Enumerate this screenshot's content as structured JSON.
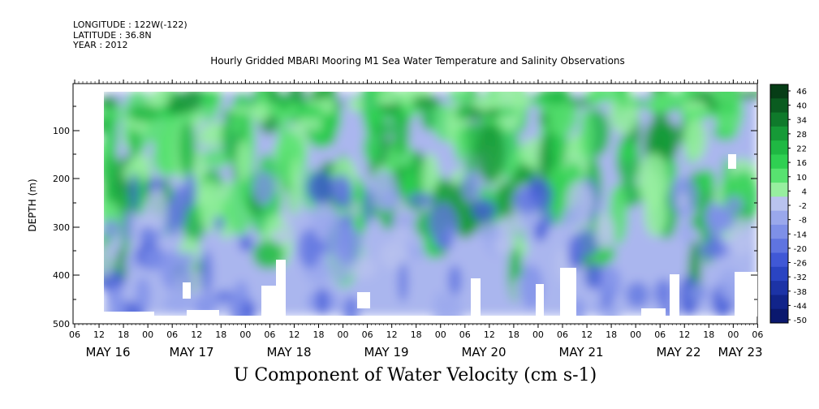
{
  "header": {
    "longitude": "LONGITUDE : 122W(-122)",
    "latitude": "LATITUDE : 36.8N",
    "year": "YEAR : 2012",
    "title": "Hourly Gridded MBARI Mooring M1 Sea Water Temperature and Salinity Observations"
  },
  "footer": {
    "variable_title": "U Component of Water Velocity (cm s-1)"
  },
  "chart_data": {
    "type": "heatmap",
    "title": "Hourly Gridded MBARI Mooring M1 Sea Water Temperature and Salinity Observations",
    "xlabel": "",
    "ylabel": "DEPTH (m)",
    "ylim": [
      500,
      10
    ],
    "y_reversed": true,
    "yticks": [
      100,
      200,
      300,
      400,
      500
    ],
    "x_hour_ticks": [
      "06",
      "12",
      "18",
      "00",
      "06",
      "12",
      "18",
      "00",
      "06",
      "12",
      "18",
      "00",
      "06",
      "12",
      "18",
      "00",
      "06",
      "12",
      "18",
      "00",
      "06",
      "12",
      "18",
      "00",
      "06",
      "12",
      "18",
      "00",
      "06"
    ],
    "x_day_labels": [
      "MAY 16",
      "MAY 17",
      "MAY 18",
      "MAY 19",
      "MAY 20",
      "MAY 21",
      "MAY 22",
      "MAY 23"
    ],
    "colorbar": {
      "labels": [
        "46",
        "40",
        "34",
        "28",
        "22",
        "16",
        "10",
        "4",
        "-2",
        "-8",
        "-14",
        "-20",
        "-26",
        "-32",
        "-38",
        "-44",
        "-50"
      ],
      "colors": [
        "#063d16",
        "#0a5c20",
        "#0f7a2b",
        "#169a37",
        "#1fb843",
        "#2fd052",
        "#58e270",
        "#97ef9f",
        "#b9c3ee",
        "#9aa8ec",
        "#7e90e8",
        "#5f74e0",
        "#4058d6",
        "#2a44c2",
        "#1c33a6",
        "#11248a",
        "#0a186e"
      ]
    },
    "pattern": [
      {
        "day": "MAY 16",
        "bands": [
          "green 10-300 m around 06-18 h",
          "blue-lavender below 300 m",
          "green patches 350-480 m"
        ]
      },
      {
        "day": "MAY 17",
        "bands": [
          "green upper column 10-250 m",
          "blue-lavender 250-480 m"
        ]
      },
      {
        "day": "MAY 18",
        "bands": [
          "strong green 50-250 m",
          "blue 300-480 m"
        ]
      },
      {
        "day": "MAY 19",
        "bands": [
          "green 10-300 m",
          "blue-lavender deep"
        ]
      },
      {
        "day": "MAY 20",
        "bands": [
          "green 100-300 m around 06-18 h",
          "blue near 400-480 m"
        ]
      },
      {
        "day": "MAY 21",
        "bands": [
          "strong green near 150-200 m at 06 h",
          "blue-lavender below"
        ]
      },
      {
        "day": "MAY 22",
        "bands": [
          "green near surface",
          "blue 200-480 m"
        ]
      },
      {
        "day": "MAY 23",
        "bands": [
          "green near surface",
          "blue below"
        ]
      }
    ]
  }
}
